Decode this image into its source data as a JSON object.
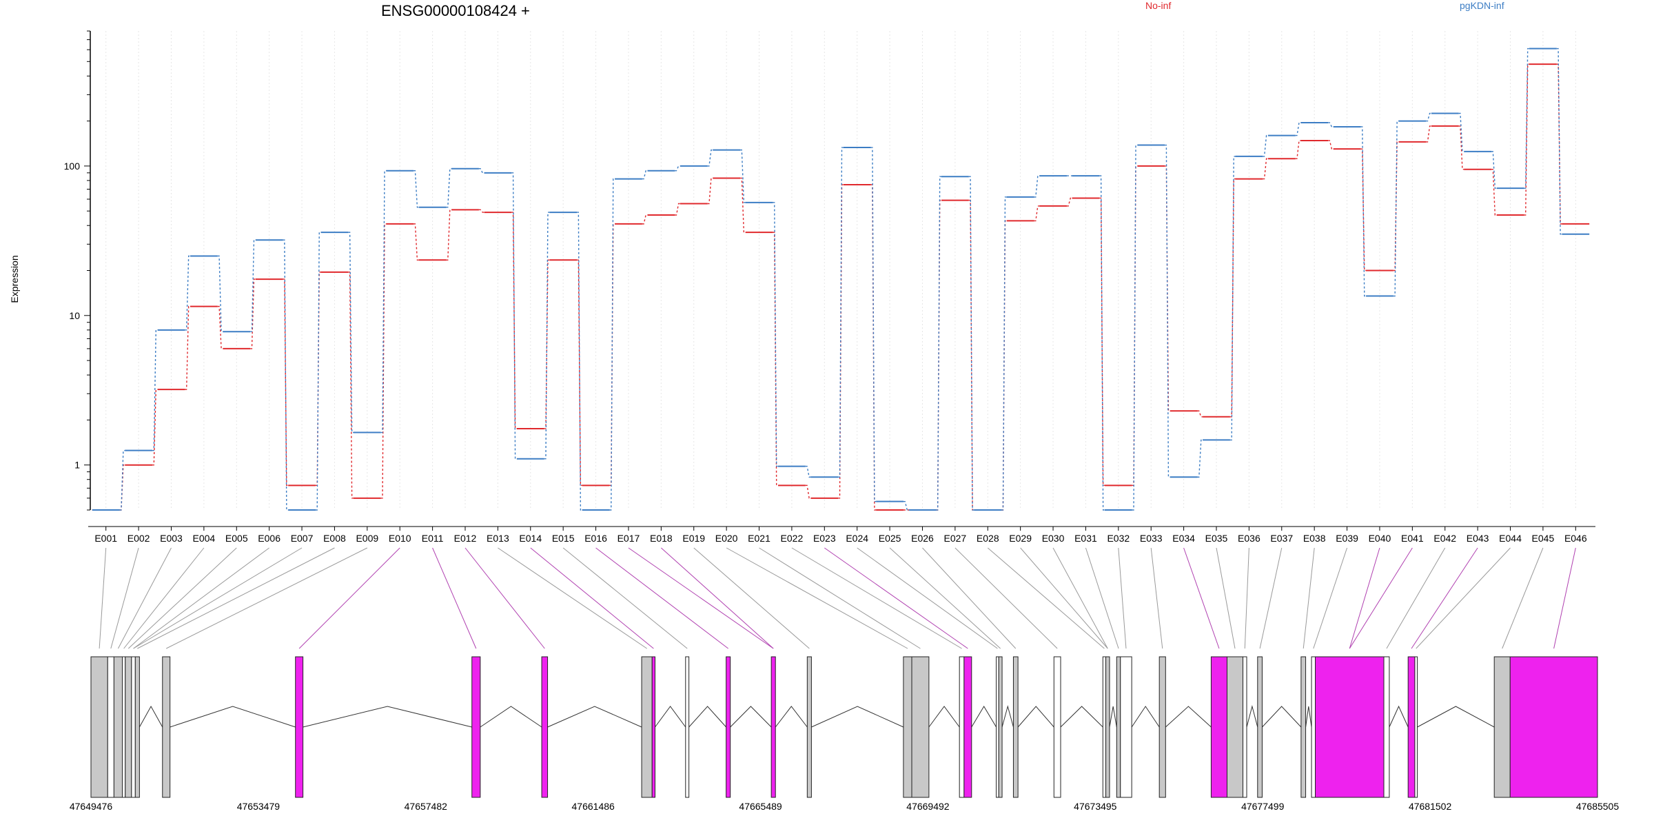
{
  "chart_data": {
    "type": "line",
    "title": "ENSG00000108424 +",
    "ylabel": "Expression",
    "yscale": "log",
    "ylim": [
      0.5,
      800
    ],
    "yticks": [
      1,
      10,
      100
    ],
    "ytick_labels": [
      "1",
      "10",
      "100"
    ],
    "categories": [
      "E001",
      "E002",
      "E003",
      "E004",
      "E005",
      "E006",
      "E007",
      "E008",
      "E009",
      "E010",
      "E011",
      "E012",
      "E013",
      "E014",
      "E015",
      "E016",
      "E017",
      "E018",
      "E019",
      "E020",
      "E021",
      "E022",
      "E023",
      "E024",
      "E025",
      "E026",
      "E027",
      "E028",
      "E029",
      "E030",
      "E031",
      "E032",
      "E033",
      "E034",
      "E035",
      "E036",
      "E037",
      "E038",
      "E039",
      "E040",
      "E041",
      "E042",
      "E043",
      "E044",
      "E045",
      "E046"
    ],
    "legend_position": "top",
    "series": [
      {
        "name": "No-inf",
        "color": "#e0282c",
        "values": [
          0.5,
          1.0,
          3.2,
          11.5,
          6.0,
          17.5,
          0.73,
          19.5,
          0.6,
          41,
          23.5,
          51,
          49,
          1.75,
          23.5,
          0.73,
          41,
          47,
          56,
          83,
          36,
          0.73,
          0.6,
          75,
          0.5,
          0.5,
          59,
          0.5,
          43,
          54,
          61,
          0.73,
          100,
          2.3,
          2.1,
          82,
          112,
          148,
          130,
          20,
          145,
          185,
          95,
          47,
          480,
          41
        ]
      },
      {
        "name": "pgKDN-inf",
        "color": "#3c7dc4",
        "values": [
          0.5,
          1.25,
          8.0,
          25,
          7.8,
          32,
          0.5,
          36,
          1.65,
          93,
          53,
          96,
          90,
          1.1,
          49,
          0.5,
          82,
          93,
          100,
          128,
          57,
          0.98,
          0.83,
          133,
          0.57,
          0.5,
          85,
          0.5,
          62,
          86,
          86,
          0.5,
          138,
          0.83,
          1.47,
          116,
          160,
          195,
          183,
          13.5,
          200,
          225,
          125,
          71,
          610,
          35
        ]
      }
    ],
    "gene_model": {
      "coordinate_labels": [
        "47649476",
        "47653479",
        "47657482",
        "47661486",
        "47665489",
        "47669492",
        "47673495",
        "47677499",
        "47681502",
        "47685505"
      ],
      "region_start": 47649476,
      "region_end": 47685505,
      "highlight_color": "#ee22ee",
      "normal_color": "#c8c8c8",
      "exons": [
        {
          "start": 47649476,
          "end": 47649876,
          "type": "normal"
        },
        {
          "start": 47649876,
          "end": 47650026,
          "type": "white"
        },
        {
          "start": 47650026,
          "end": 47650226,
          "type": "normal"
        },
        {
          "start": 47650226,
          "end": 47650296,
          "type": "white"
        },
        {
          "start": 47650296,
          "end": 47650446,
          "type": "normal"
        },
        {
          "start": 47650446,
          "end": 47650536,
          "type": "white"
        },
        {
          "start": 47650536,
          "end": 47650636,
          "type": "normal"
        },
        {
          "start": 47651186,
          "end": 47651366,
          "type": "normal"
        },
        {
          "start": 47654366,
          "end": 47654546,
          "type": "highlight"
        },
        {
          "start": 47658586,
          "end": 47658786,
          "type": "highlight"
        },
        {
          "start": 47660256,
          "end": 47660396,
          "type": "highlight"
        },
        {
          "start": 47662646,
          "end": 47662896,
          "type": "normal"
        },
        {
          "start": 47662896,
          "end": 47662966,
          "type": "highlight"
        },
        {
          "start": 47663696,
          "end": 47663776,
          "type": "white"
        },
        {
          "start": 47664666,
          "end": 47664766,
          "type": "highlight"
        },
        {
          "start": 47665746,
          "end": 47665846,
          "type": "highlight"
        },
        {
          "start": 47666606,
          "end": 47666706,
          "type": "normal"
        },
        {
          "start": 47668906,
          "end": 47669106,
          "type": "normal"
        },
        {
          "start": 47669106,
          "end": 47669516,
          "type": "normal"
        },
        {
          "start": 47670246,
          "end": 47670356,
          "type": "white"
        },
        {
          "start": 47670356,
          "end": 47670536,
          "type": "highlight"
        },
        {
          "start": 47671126,
          "end": 47671186,
          "type": "white"
        },
        {
          "start": 47671186,
          "end": 47671266,
          "type": "normal"
        },
        {
          "start": 47671536,
          "end": 47671646,
          "type": "normal"
        },
        {
          "start": 47672506,
          "end": 47672666,
          "type": "white"
        },
        {
          "start": 47673676,
          "end": 47673746,
          "type": "white"
        },
        {
          "start": 47673746,
          "end": 47673836,
          "type": "normal"
        },
        {
          "start": 47674006,
          "end": 47674096,
          "type": "normal"
        },
        {
          "start": 47674096,
          "end": 47674366,
          "type": "white"
        },
        {
          "start": 47675026,
          "end": 47675176,
          "type": "normal"
        },
        {
          "start": 47676266,
          "end": 47676646,
          "type": "highlight"
        },
        {
          "start": 47676646,
          "end": 47677026,
          "type": "normal"
        },
        {
          "start": 47677026,
          "end": 47677116,
          "type": "white"
        },
        {
          "start": 47677376,
          "end": 47677486,
          "type": "normal"
        },
        {
          "start": 47678416,
          "end": 47678526,
          "type": "normal"
        },
        {
          "start": 47678666,
          "end": 47678756,
          "type": "white"
        },
        {
          "start": 47678756,
          "end": 47680396,
          "type": "highlight"
        },
        {
          "start": 47680396,
          "end": 47680526,
          "type": "white"
        },
        {
          "start": 47680976,
          "end": 47681136,
          "type": "highlight"
        },
        {
          "start": 47681136,
          "end": 47681196,
          "type": "white"
        },
        {
          "start": 47683036,
          "end": 47683416,
          "type": "normal"
        },
        {
          "start": 47683416,
          "end": 47685505,
          "type": "highlight"
        }
      ]
    }
  }
}
